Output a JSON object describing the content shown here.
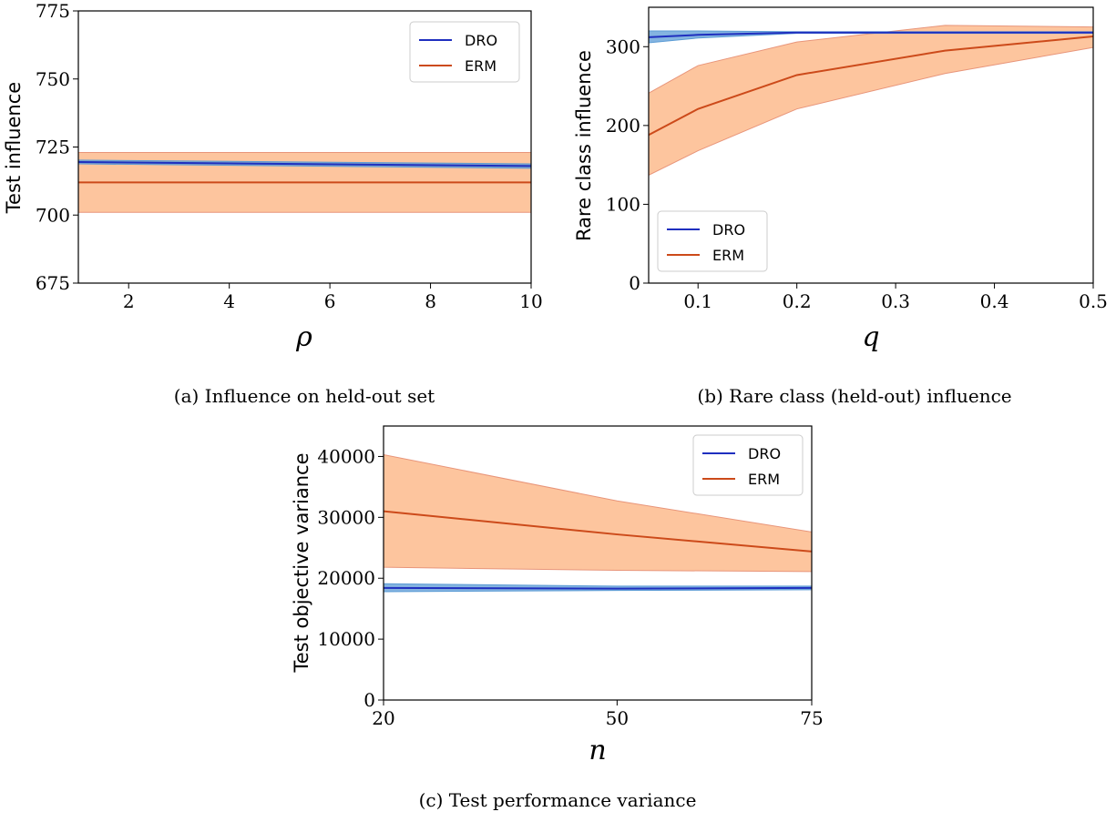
{
  "colors": {
    "dro_line": "#1f2fbf",
    "dro_band": "#5b9bd5",
    "erm_line": "#cc4a1a",
    "erm_band": "#fdbf94",
    "erm_band_edge": "#e8957a"
  },
  "chart_data": [
    {
      "type": "line",
      "caption": "(a) Influence on held-out set",
      "xlabel": "ρ",
      "ylabel": "Test influence",
      "xlim": [
        1,
        10
      ],
      "ylim": [
        675,
        775
      ],
      "xticks": [
        2,
        4,
        6,
        8,
        10
      ],
      "yticks": [
        675,
        700,
        725,
        750,
        775
      ],
      "legend": "top-right",
      "series": [
        {
          "name": "DRO",
          "x": [
            1,
            10
          ],
          "y": [
            719.5,
            718
          ],
          "lower": [
            718.8,
            717.2
          ],
          "upper": [
            720.2,
            718.8
          ]
        },
        {
          "name": "ERM",
          "x": [
            1,
            10
          ],
          "y": [
            712,
            712
          ],
          "lower": [
            701,
            701
          ],
          "upper": [
            723,
            723
          ]
        }
      ]
    },
    {
      "type": "line",
      "caption": "(b) Rare class (held-out) influence",
      "xlabel": "q",
      "ylabel": "Rare class influence",
      "xlim": [
        0.05,
        0.5
      ],
      "ylim": [
        0,
        350
      ],
      "xticks": [
        0.1,
        0.2,
        0.3,
        0.4,
        0.5
      ],
      "yticks": [
        0,
        100,
        200,
        300
      ],
      "legend": "bottom-left",
      "series": [
        {
          "name": "DRO",
          "x": [
            0.05,
            0.1,
            0.2,
            0.35,
            0.5
          ],
          "y": [
            312,
            315,
            318,
            318,
            318
          ],
          "lower": [
            305,
            311,
            317,
            317,
            317
          ],
          "upper": [
            320,
            320,
            319,
            319,
            319
          ]
        },
        {
          "name": "ERM",
          "x": [
            0.05,
            0.1,
            0.2,
            0.35,
            0.5
          ],
          "y": [
            188,
            221,
            264,
            295,
            313
          ],
          "lower": [
            137,
            168,
            221,
            266,
            299
          ],
          "upper": [
            241,
            276,
            306,
            327,
            325
          ]
        }
      ]
    },
    {
      "type": "line",
      "caption": "(c) Test performance variance",
      "xlabel": "n",
      "ylabel": "Test objective variance",
      "xlim": [
        20,
        75
      ],
      "ylim": [
        0,
        45000
      ],
      "xticks": [
        20,
        50,
        75
      ],
      "yticks": [
        0,
        10000,
        20000,
        30000,
        40000
      ],
      "legend": "top-right",
      "series": [
        {
          "name": "DRO",
          "x": [
            20,
            50,
            75
          ],
          "y": [
            18400,
            18300,
            18400
          ],
          "lower": [
            17800,
            18000,
            18100
          ],
          "upper": [
            19100,
            18700,
            18700
          ]
        },
        {
          "name": "ERM",
          "x": [
            20,
            50,
            75
          ],
          "y": [
            31000,
            27200,
            24400
          ],
          "lower": [
            21800,
            21300,
            21100
          ],
          "upper": [
            40300,
            32700,
            27600
          ]
        }
      ]
    }
  ]
}
